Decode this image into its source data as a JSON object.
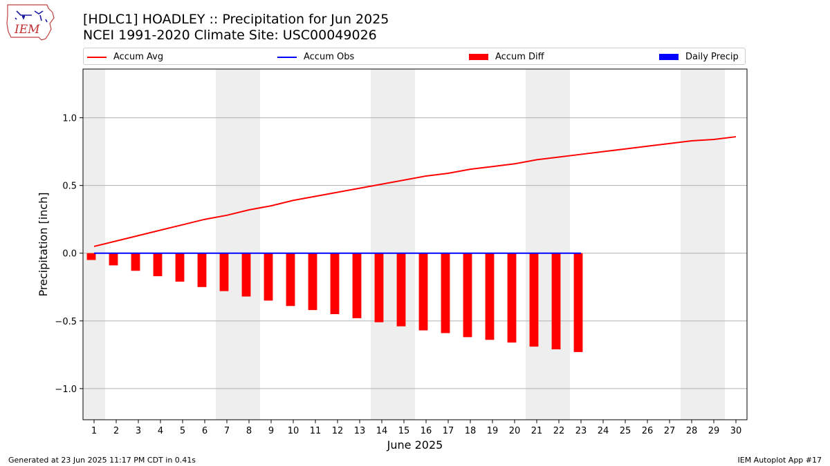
{
  "header": {
    "logo_text": "IEM",
    "title": "[HDLC1] HOADLEY :: Precipitation for Jun 2025",
    "subtitle": "NCEI 1991-2020 Climate Site: USC00049026"
  },
  "legend": {
    "items": [
      {
        "label": "Accum Avg",
        "kind": "line",
        "color": "#ff0000"
      },
      {
        "label": "Accum Obs",
        "kind": "line",
        "color": "#0000ff"
      },
      {
        "label": "Accum Diff",
        "kind": "box",
        "color": "#ff0000"
      },
      {
        "label": "Daily Precip",
        "kind": "box",
        "color": "#0000ff"
      }
    ]
  },
  "footer": {
    "left": "Generated at 23 Jun 2025 11:17 PM CDT in 0.41s",
    "right": "IEM Autoplot App #17"
  },
  "chart_data": {
    "type": "bar",
    "xlabel": "June 2025",
    "ylabel": "Precipitation [inch]",
    "x": [
      1,
      2,
      3,
      4,
      5,
      6,
      7,
      8,
      9,
      10,
      11,
      12,
      13,
      14,
      15,
      16,
      17,
      18,
      19,
      20,
      21,
      22,
      23,
      24,
      25,
      26,
      27,
      28,
      29,
      30
    ],
    "x_tick_labels": [
      "1",
      "2",
      "3",
      "4",
      "5",
      "6",
      "7",
      "8",
      "9",
      "10",
      "11",
      "12",
      "13",
      "14",
      "15",
      "16",
      "17",
      "18",
      "19",
      "20",
      "21",
      "22",
      "23",
      "24",
      "25",
      "26",
      "27",
      "28",
      "29",
      "30"
    ],
    "xlim": [
      0.5,
      30.5
    ],
    "ylim": [
      -1.23,
      1.36
    ],
    "y_ticks": [
      -1.0,
      -0.5,
      0.0,
      0.5,
      1.0
    ],
    "y_tick_labels": [
      "−1.0",
      "−0.5",
      "0.0",
      "0.5",
      "1.0"
    ],
    "grid": "y",
    "legend_position": "top",
    "weekend_shading": [
      [
        0.5,
        1.5
      ],
      [
        6.5,
        8.5
      ],
      [
        13.5,
        15.5
      ],
      [
        20.5,
        22.5
      ],
      [
        27.5,
        29.5
      ]
    ],
    "shading_color": "#eeeeee",
    "series": [
      {
        "name": "Accum Avg",
        "type": "line",
        "color": "#ff0000",
        "x": [
          1,
          2,
          3,
          4,
          5,
          6,
          7,
          8,
          9,
          10,
          11,
          12,
          13,
          14,
          15,
          16,
          17,
          18,
          19,
          20,
          21,
          22,
          23,
          24,
          25,
          26,
          27,
          28,
          29,
          30
        ],
        "values": [
          0.05,
          0.09,
          0.13,
          0.17,
          0.21,
          0.25,
          0.28,
          0.32,
          0.35,
          0.39,
          0.42,
          0.45,
          0.48,
          0.51,
          0.54,
          0.57,
          0.59,
          0.62,
          0.64,
          0.66,
          0.69,
          0.71,
          0.73,
          0.75,
          0.77,
          0.79,
          0.81,
          0.83,
          0.84,
          0.86
        ]
      },
      {
        "name": "Accum Obs",
        "type": "line",
        "color": "#0000ff",
        "x": [
          1,
          2,
          3,
          4,
          5,
          6,
          7,
          8,
          9,
          10,
          11,
          12,
          13,
          14,
          15,
          16,
          17,
          18,
          19,
          20,
          21,
          22,
          23
        ],
        "values": [
          0,
          0,
          0,
          0,
          0,
          0,
          0,
          0,
          0,
          0,
          0,
          0,
          0,
          0,
          0,
          0,
          0,
          0,
          0,
          0,
          0,
          0,
          0
        ]
      },
      {
        "name": "Accum Diff",
        "type": "bar",
        "color": "#ff0000",
        "x": [
          1,
          2,
          3,
          4,
          5,
          6,
          7,
          8,
          9,
          10,
          11,
          12,
          13,
          14,
          15,
          16,
          17,
          18,
          19,
          20,
          21,
          22,
          23
        ],
        "values": [
          -0.05,
          -0.09,
          -0.13,
          -0.17,
          -0.21,
          -0.25,
          -0.28,
          -0.32,
          -0.35,
          -0.39,
          -0.42,
          -0.45,
          -0.48,
          -0.51,
          -0.54,
          -0.57,
          -0.59,
          -0.62,
          -0.64,
          -0.66,
          -0.69,
          -0.71,
          -0.73
        ]
      },
      {
        "name": "Daily Precip",
        "type": "bar",
        "color": "#0000ff",
        "x": [
          1,
          2,
          3,
          4,
          5,
          6,
          7,
          8,
          9,
          10,
          11,
          12,
          13,
          14,
          15,
          16,
          17,
          18,
          19,
          20,
          21,
          22,
          23
        ],
        "values": [
          0,
          0,
          0,
          0,
          0,
          0,
          0,
          0,
          0,
          0,
          0,
          0,
          0,
          0,
          0,
          0,
          0,
          0,
          0,
          0,
          0,
          0,
          0
        ]
      }
    ]
  }
}
